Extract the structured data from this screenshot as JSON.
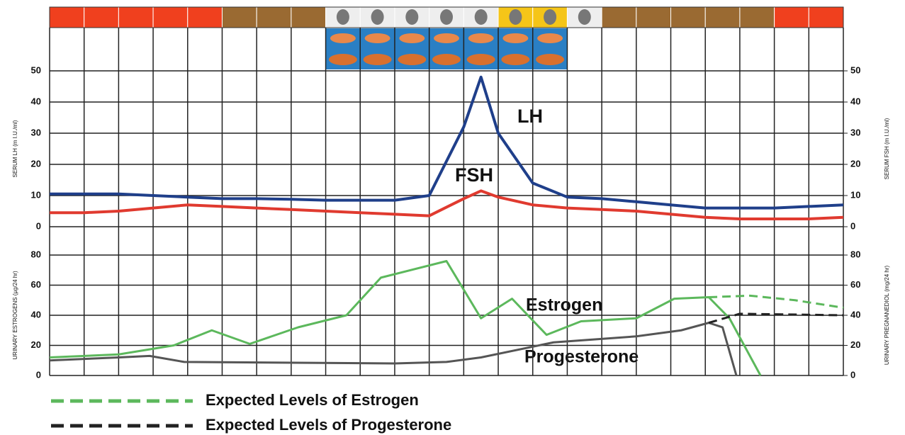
{
  "chart_data": [
    {
      "type": "line",
      "x": [
        0,
        1,
        2,
        3,
        4,
        5,
        6,
        7,
        8,
        9,
        10,
        11,
        12,
        12.5,
        13,
        14,
        15,
        16,
        17,
        18,
        19,
        20,
        21,
        22,
        23
      ],
      "xlim": [
        0,
        23
      ],
      "xticks": [
        0,
        1,
        2,
        3,
        4,
        5,
        6,
        7,
        8,
        9,
        10,
        11,
        12,
        13,
        14,
        15,
        16,
        17,
        18,
        19,
        20,
        21,
        22,
        23
      ],
      "ylim": [
        0,
        50
      ],
      "yticks": [
        0,
        10,
        20,
        30,
        40,
        50
      ],
      "y2lim": [
        0,
        50
      ],
      "y2ticks": [
        0,
        10,
        20,
        30,
        40,
        50
      ],
      "ylabel": "SERUM LH (m I.U./ml)",
      "y2label": "SERUM FSH (m I.U./ml)",
      "series": [
        {
          "name": "LH",
          "color": "#1f3f8a",
          "values": [
            10.5,
            10.5,
            10.5,
            10,
            9.5,
            9,
            9,
            8.8,
            8.5,
            8.5,
            8.5,
            10,
            32,
            48,
            30,
            14,
            9.5,
            9,
            8,
            7,
            6,
            6,
            6,
            6.5,
            7
          ]
        },
        {
          "name": "FSH",
          "color": "#e03a2f",
          "axis": "y2",
          "values": [
            4.5,
            4.5,
            5,
            6,
            7,
            6.5,
            6,
            5.5,
            5,
            4.5,
            4,
            3.5,
            9,
            11.5,
            9.5,
            7,
            6,
            5.5,
            5,
            4,
            3,
            2.5,
            2.5,
            2.5,
            3
          ]
        }
      ]
    },
    {
      "type": "line",
      "xlim": [
        0,
        23
      ],
      "ylim": [
        0,
        80
      ],
      "yticks": [
        0,
        20,
        40,
        60,
        80
      ],
      "y2lim": [
        0,
        80
      ],
      "y2ticks": [
        0,
        20,
        40,
        60,
        80
      ],
      "ylabel": "URINARY ESTROGENS (µg/24 hr)",
      "y2label": "URINARY PREGNANEDIOL (mg/24 hr)",
      "series": [
        {
          "name": "Estrogen",
          "color": "#5cb85c",
          "x": [
            0,
            2,
            3.6,
            4.7,
            5.8,
            7.2,
            8.6,
            9.6,
            11.5,
            12.5,
            13.4,
            14.4,
            15.4,
            17,
            18.1,
            19.1,
            19.7,
            20.6
          ],
          "values": [
            12,
            14,
            20,
            30,
            21,
            32,
            40,
            65,
            76,
            38,
            51,
            27,
            36,
            38,
            51,
            52,
            38,
            0
          ]
        },
        {
          "name": "Progesterone",
          "color": "#555555",
          "axis": "y2",
          "x": [
            0,
            2,
            2.9,
            3.9,
            10,
            11.5,
            12.5,
            14.6,
            17,
            18.3,
            19.1,
            19.5,
            19.9
          ],
          "values": [
            10,
            12,
            13,
            9,
            8,
            9,
            12,
            22,
            26,
            30,
            35,
            32,
            0
          ]
        },
        {
          "name": "Expected Levels of Estrogen",
          "color": "#5cb85c",
          "dashed": true,
          "x": [
            19.1,
            20.3,
            21.6,
            23
          ],
          "values": [
            52,
            53,
            50,
            45
          ]
        },
        {
          "name": "Expected Levels of Progesterone",
          "color": "#222222",
          "dashed": true,
          "axis": "y2",
          "x": [
            19.1,
            20,
            23
          ],
          "values": [
            35,
            41,
            40
          ]
        }
      ]
    }
  ]
}
